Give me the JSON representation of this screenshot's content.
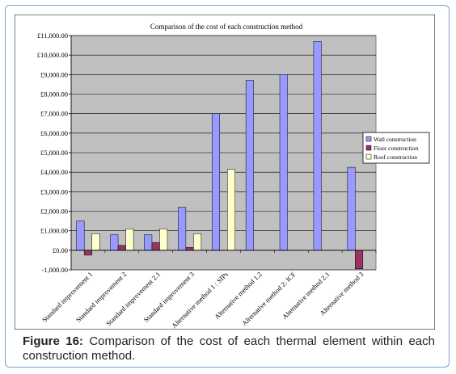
{
  "chart_data": {
    "type": "bar",
    "title": "Comparison of the cost of each construction method",
    "categories": [
      "Standard improvement 1",
      "Standard improvement 2",
      "Standard improvement 2.1",
      "Standard improvement 3",
      "Alternative method 1 : SIPs",
      "Alternative method 1.2",
      "Alternative method 2: ICF",
      "Alternative method 2.1",
      "Alternative method 3"
    ],
    "series": [
      {
        "name": "Wall construction",
        "color": "#9999ff",
        "values": [
          1500,
          800,
          800,
          2200,
          7000,
          8700,
          9000,
          10700,
          4250
        ]
      },
      {
        "name": "Floor construction",
        "color": "#993366",
        "values": [
          -250,
          250,
          400,
          150,
          0,
          0,
          0,
          0,
          -950
        ]
      },
      {
        "name": "Roof construction",
        "color": "#ffffcc",
        "values": [
          850,
          1100,
          1100,
          850,
          4150,
          0,
          0,
          0,
          0
        ]
      }
    ],
    "ylim": [
      -1000,
      11000
    ],
    "yticks": [
      "-1,000.00",
      "£0.00",
      "£1,000.00",
      "£2,000.00",
      "£3,000.00",
      "£4,000.00",
      "£5,000.00",
      "£6,000.00",
      "£7,000.00",
      "£8,000.00",
      "£9,000.00",
      "£10,000.00",
      "£11,000.00"
    ],
    "ytick_values": [
      -1000,
      0,
      1000,
      2000,
      3000,
      4000,
      5000,
      6000,
      7000,
      8000,
      9000,
      10000,
      11000
    ],
    "grid": true,
    "legend": "right",
    "plot_background": "#c0c0c0"
  },
  "caption": {
    "label": "Figure 16:",
    "text": " Comparison of the cost of each thermal element within each construction method."
  }
}
